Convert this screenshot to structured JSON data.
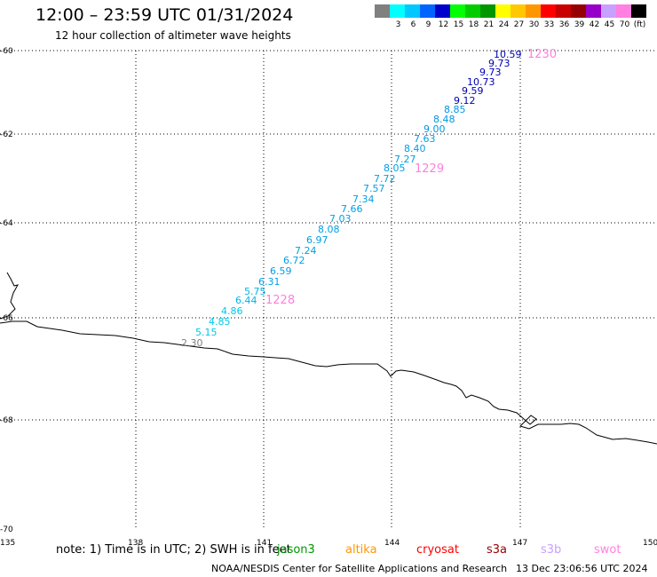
{
  "header": {
    "title": "12:00 – 23:59 UTC 01/31/2024",
    "subtitle": "12 hour collection of altimeter wave heights"
  },
  "colorbar": {
    "swatches": [
      {
        "color": "#808080",
        "label": ""
      },
      {
        "color": "#00ffff",
        "label": "3"
      },
      {
        "color": "#00c8ff",
        "label": "6"
      },
      {
        "color": "#0064ff",
        "label": "9"
      },
      {
        "color": "#0000cc",
        "label": "12"
      },
      {
        "color": "#00ff00",
        "label": "15"
      },
      {
        "color": "#00cc00",
        "label": "18"
      },
      {
        "color": "#009600",
        "label": "21"
      },
      {
        "color": "#ffff00",
        "label": "24"
      },
      {
        "color": "#ffc800",
        "label": "27"
      },
      {
        "color": "#ff9600",
        "label": "30"
      },
      {
        "color": "#ff0000",
        "label": "33"
      },
      {
        "color": "#c80000",
        "label": "36"
      },
      {
        "color": "#960000",
        "label": "39"
      },
      {
        "color": "#9600c8",
        "label": "42"
      },
      {
        "color": "#c8a0ff",
        "label": "45"
      },
      {
        "color": "#ff80e0",
        "label": "70"
      },
      {
        "color": "#000000",
        "label": "(ft)"
      }
    ]
  },
  "axes": {
    "lon_ticks": [
      "135",
      "138",
      "141",
      "144",
      "147",
      "150"
    ],
    "lat_ticks": [
      "-60",
      "-62",
      "-64",
      "-66",
      "-68",
      "-70"
    ]
  },
  "chart_data": {
    "type": "scatter",
    "wave_heights_ft": [
      {
        "value": "10.59",
        "color": "#0000b4"
      },
      {
        "value": "9.73",
        "color": "#0000b4"
      },
      {
        "value": "9.73",
        "color": "#0000b4"
      },
      {
        "value": "10.73",
        "color": "#0000b4"
      },
      {
        "value": "9.59",
        "color": "#0000b4"
      },
      {
        "value": "9.12",
        "color": "#0000b4"
      },
      {
        "value": "8.85",
        "color": "#0096e6"
      },
      {
        "value": "8.48",
        "color": "#0096e6"
      },
      {
        "value": "9.00",
        "color": "#0096e6"
      },
      {
        "value": "7.63",
        "color": "#00a0e6"
      },
      {
        "value": "8.40",
        "color": "#00a0e6"
      },
      {
        "value": "7.27",
        "color": "#00a0e6"
      },
      {
        "value": "8.05",
        "color": "#00a0e6"
      },
      {
        "value": "7.72",
        "color": "#00a0e6"
      },
      {
        "value": "7.57",
        "color": "#00a0e6"
      },
      {
        "value": "7.34",
        "color": "#00a0e6"
      },
      {
        "value": "7.66",
        "color": "#00a0e6"
      },
      {
        "value": "7.03",
        "color": "#00a0e6"
      },
      {
        "value": "8.08",
        "color": "#00a0e6"
      },
      {
        "value": "6.97",
        "color": "#00a0e6"
      },
      {
        "value": "7.24",
        "color": "#00a0e6"
      },
      {
        "value": "6.72",
        "color": "#00a0e6"
      },
      {
        "value": "6.59",
        "color": "#00a0e6"
      },
      {
        "value": "6.31",
        "color": "#00a0e6"
      },
      {
        "value": "5.75",
        "color": "#00b4e6"
      },
      {
        "value": "6.44",
        "color": "#00b4e6"
      },
      {
        "value": "4.86",
        "color": "#00c8e6"
      },
      {
        "value": "4.85",
        "color": "#00c8e6"
      },
      {
        "value": "5.15",
        "color": "#00c8e6"
      },
      {
        "value": "2.30",
        "color": "#808080"
      }
    ],
    "time_labels": [
      {
        "text": "1230",
        "color": "#ff80e0"
      },
      {
        "text": "1229",
        "color": "#ff80e0"
      },
      {
        "text": "1228",
        "color": "#ff80e0"
      }
    ]
  },
  "footer": {
    "note": "note:  1) Time is in UTC; 2) SWH is in feet",
    "satellites": [
      {
        "name": "jason3",
        "color": "#009600"
      },
      {
        "name": "altika",
        "color": "#ff9600"
      },
      {
        "name": "cryosat",
        "color": "#ff0000"
      },
      {
        "name": "s3a",
        "color": "#960000"
      },
      {
        "name": "s3b",
        "color": "#c8a0ff"
      },
      {
        "name": "swot",
        "color": "#ff80e0"
      }
    ],
    "credit": "NOAA/NESDIS Center for Satellite Applications and Research",
    "timestamp": "13 Dec 23:06:56 UTC 2024"
  }
}
